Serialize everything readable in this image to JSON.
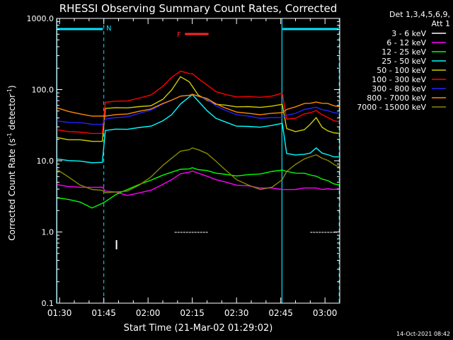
{
  "chart_data": {
    "type": "line",
    "title": "RHESSI Observing Summary Count Rates, Corrected",
    "xlabel": "Start Time (21-Mar-02 01:29:02)",
    "ylabel_main": "Corrected Count Rate (s",
    "ylabel_sup1": "-1",
    "ylabel_mid": " detector",
    "ylabel_sup2": "-1",
    "ylabel_end": ")",
    "y_scale": "log",
    "ylim": [
      0.1,
      1000
    ],
    "xlim_minutes": [
      89.0,
      185.0
    ],
    "y_ticks": [
      {
        "v": 1000,
        "label": "1000.0"
      },
      {
        "v": 100,
        "label": "100.0"
      },
      {
        "v": 10,
        "label": "10.0"
      },
      {
        "v": 1,
        "label": "1.0"
      },
      {
        "v": 0.1,
        "label": "0.1"
      }
    ],
    "x_ticks": [
      {
        "m": 90,
        "label": "01:30"
      },
      {
        "m": 105,
        "label": "01:45"
      },
      {
        "m": 120,
        "label": "02:00"
      },
      {
        "m": 135,
        "label": "02:15"
      },
      {
        "m": 150,
        "label": "02:30"
      },
      {
        "m": 165,
        "label": "02:45"
      },
      {
        "m": 180,
        "label": "03:00"
      }
    ],
    "legend_header": [
      "Det 1,3,4,5,6,9,",
      "Att 1"
    ],
    "legend_position": "right",
    "flags": {
      "N_label": "N",
      "F_label": "F"
    },
    "timestamp": "14-Oct-2021 08:42",
    "x_minutes": [
      89,
      93,
      97,
      101,
      104.5,
      105.5,
      109,
      113,
      117,
      121,
      125,
      128,
      131,
      134,
      135,
      137,
      140,
      143,
      146,
      150,
      154,
      158,
      162,
      165.5,
      167,
      170,
      173,
      175,
      177,
      179,
      181,
      183,
      185
    ],
    "series": [
      {
        "name": "3 - 6 keV",
        "color": "#ffffff",
        "values": [
          null,
          null,
          null,
          null,
          null,
          null,
          null,
          null,
          null,
          null,
          null,
          null,
          null,
          null,
          null,
          null,
          null,
          null,
          null,
          null,
          null,
          null,
          null,
          null,
          null,
          null,
          null,
          null,
          null,
          null,
          null,
          null,
          null
        ]
      },
      {
        "name": "6 - 12 keV",
        "color": "#ff00ff",
        "values": [
          4.6,
          4.4,
          4.2,
          4.3,
          4.2,
          3.8,
          3.6,
          3.3,
          3.5,
          3.9,
          4.6,
          5.5,
          6.5,
          7.0,
          7.1,
          6.8,
          6.0,
          5.5,
          5.0,
          4.6,
          4.4,
          4.2,
          4.1,
          4.0,
          3.9,
          4.0,
          4.1,
          4.2,
          4.1,
          4.0,
          4.0,
          4.0,
          4.0
        ]
      },
      {
        "name": "12 - 25 keV",
        "color": "#00ff00",
        "values": [
          3.0,
          2.9,
          2.6,
          2.2,
          2.5,
          2.7,
          3.3,
          4.0,
          4.6,
          5.4,
          6.2,
          7.0,
          7.5,
          7.8,
          7.9,
          7.6,
          7.2,
          6.8,
          6.4,
          6.2,
          6.3,
          6.6,
          7.0,
          7.5,
          7.0,
          6.8,
          6.6,
          6.4,
          6.0,
          5.6,
          5.2,
          4.8,
          4.5
        ]
      },
      {
        "name": "25 - 50 keV",
        "color": "#00ffff",
        "values": [
          10.5,
          10.2,
          9.8,
          9.5,
          9.4,
          27.0,
          27.5,
          28.0,
          29.0,
          31.0,
          36.0,
          45.0,
          62.0,
          80.0,
          84.0,
          70.0,
          50.0,
          40.0,
          35.0,
          31.0,
          30.0,
          30.0,
          31.0,
          34.0,
          12.5,
          12.2,
          12.2,
          13.0,
          15.0,
          13.0,
          12.0,
          11.5,
          11.2
        ]
      },
      {
        "name": "50 - 100 keV",
        "color": "#cccc00",
        "values": [
          21.0,
          20.0,
          19.5,
          19.0,
          18.5,
          55.0,
          55.0,
          56.0,
          57.0,
          60.0,
          72.0,
          100.0,
          150.0,
          130.0,
          110.0,
          85.0,
          70.0,
          63.0,
          60.0,
          58.0,
          57.0,
          57.0,
          58.0,
          63.0,
          28.0,
          26.0,
          27.0,
          33.0,
          40.0,
          30.0,
          26.0,
          25.0,
          24.0
        ]
      },
      {
        "name": "100 - 300 keV",
        "color": "#ff0000",
        "values": [
          27.0,
          26.0,
          25.0,
          24.5,
          24.0,
          67.0,
          68.0,
          70.0,
          75.0,
          85.0,
          110.0,
          150.0,
          180.0,
          170.0,
          165.0,
          145.0,
          115.0,
          95.0,
          85.0,
          80.0,
          79.0,
          79.0,
          80.0,
          90.0,
          38.0,
          40.0,
          45.0,
          48.0,
          50.0,
          45.0,
          40.0,
          37.0,
          35.0
        ]
      },
      {
        "name": "300 - 800 keV",
        "color": "#2222ff",
        "values": [
          36.0,
          35.0,
          34.0,
          33.0,
          32.0,
          39.0,
          40.0,
          42.0,
          46.0,
          52.0,
          62.0,
          72.0,
          80.0,
          84.0,
          85.0,
          82.0,
          72.0,
          60.0,
          51.0,
          45.0,
          42.0,
          40.0,
          40.0,
          41.0,
          43.0,
          47.0,
          52.0,
          55.0,
          56.0,
          53.0,
          50.0,
          48.0,
          46.0
        ]
      },
      {
        "name": "800 - 7000 keV",
        "color": "#ff8800",
        "values": [
          55.0,
          50.0,
          45.0,
          43.0,
          42.0,
          43.0,
          44.0,
          46.0,
          49.0,
          54.0,
          63.0,
          72.0,
          80.0,
          84.0,
          85.0,
          82.0,
          74.0,
          64.0,
          55.0,
          49.0,
          46.0,
          45.0,
          46.0,
          48.0,
          52.0,
          58.0,
          63.0,
          65.0,
          66.0,
          65.0,
          63.0,
          60.0,
          57.0
        ]
      },
      {
        "name": "7000 - 15000 keV",
        "color": "#888800",
        "values": [
          7.5,
          6.0,
          4.5,
          4.0,
          3.8,
          3.6,
          3.6,
          3.8,
          4.5,
          6.0,
          8.5,
          11.0,
          13.5,
          14.5,
          15.0,
          14.5,
          12.5,
          10.0,
          7.5,
          5.5,
          4.5,
          4.0,
          4.2,
          5.5,
          7.0,
          9.0,
          10.5,
          11.5,
          12.0,
          11.0,
          10.0,
          9.0,
          8.0
        ]
      }
    ]
  }
}
